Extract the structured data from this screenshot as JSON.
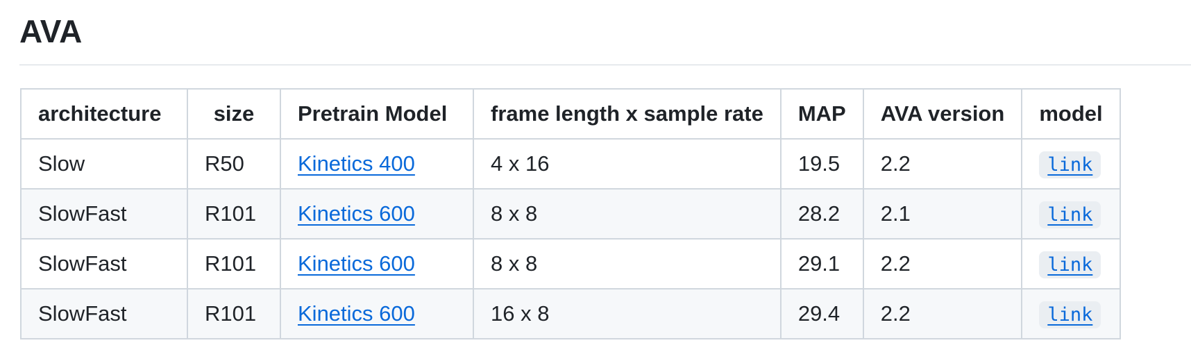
{
  "title": "AVA",
  "table": {
    "headers": [
      "architecture",
      "size",
      "Pretrain Model",
      "frame length x sample rate",
      "MAP",
      "AVA version",
      "model"
    ],
    "rows": [
      [
        "Slow",
        "R50",
        "Kinetics 400",
        "4 x 16",
        "19.5",
        "2.2",
        "link"
      ],
      [
        "SlowFast",
        "R101",
        "Kinetics 600",
        "8 x 8",
        "28.2",
        "2.1",
        "link"
      ],
      [
        "SlowFast",
        "R101",
        "Kinetics 600",
        "8 x 8",
        "29.1",
        "2.2",
        "link"
      ],
      [
        "SlowFast",
        "R101",
        "Kinetics 600",
        "16 x 8",
        "29.4",
        "2.2",
        "link"
      ]
    ]
  },
  "colors": {
    "link": "#0969da",
    "border": "#d0d7de",
    "stripe": "#f6f8fa",
    "code_bg": "#eaeef2"
  }
}
